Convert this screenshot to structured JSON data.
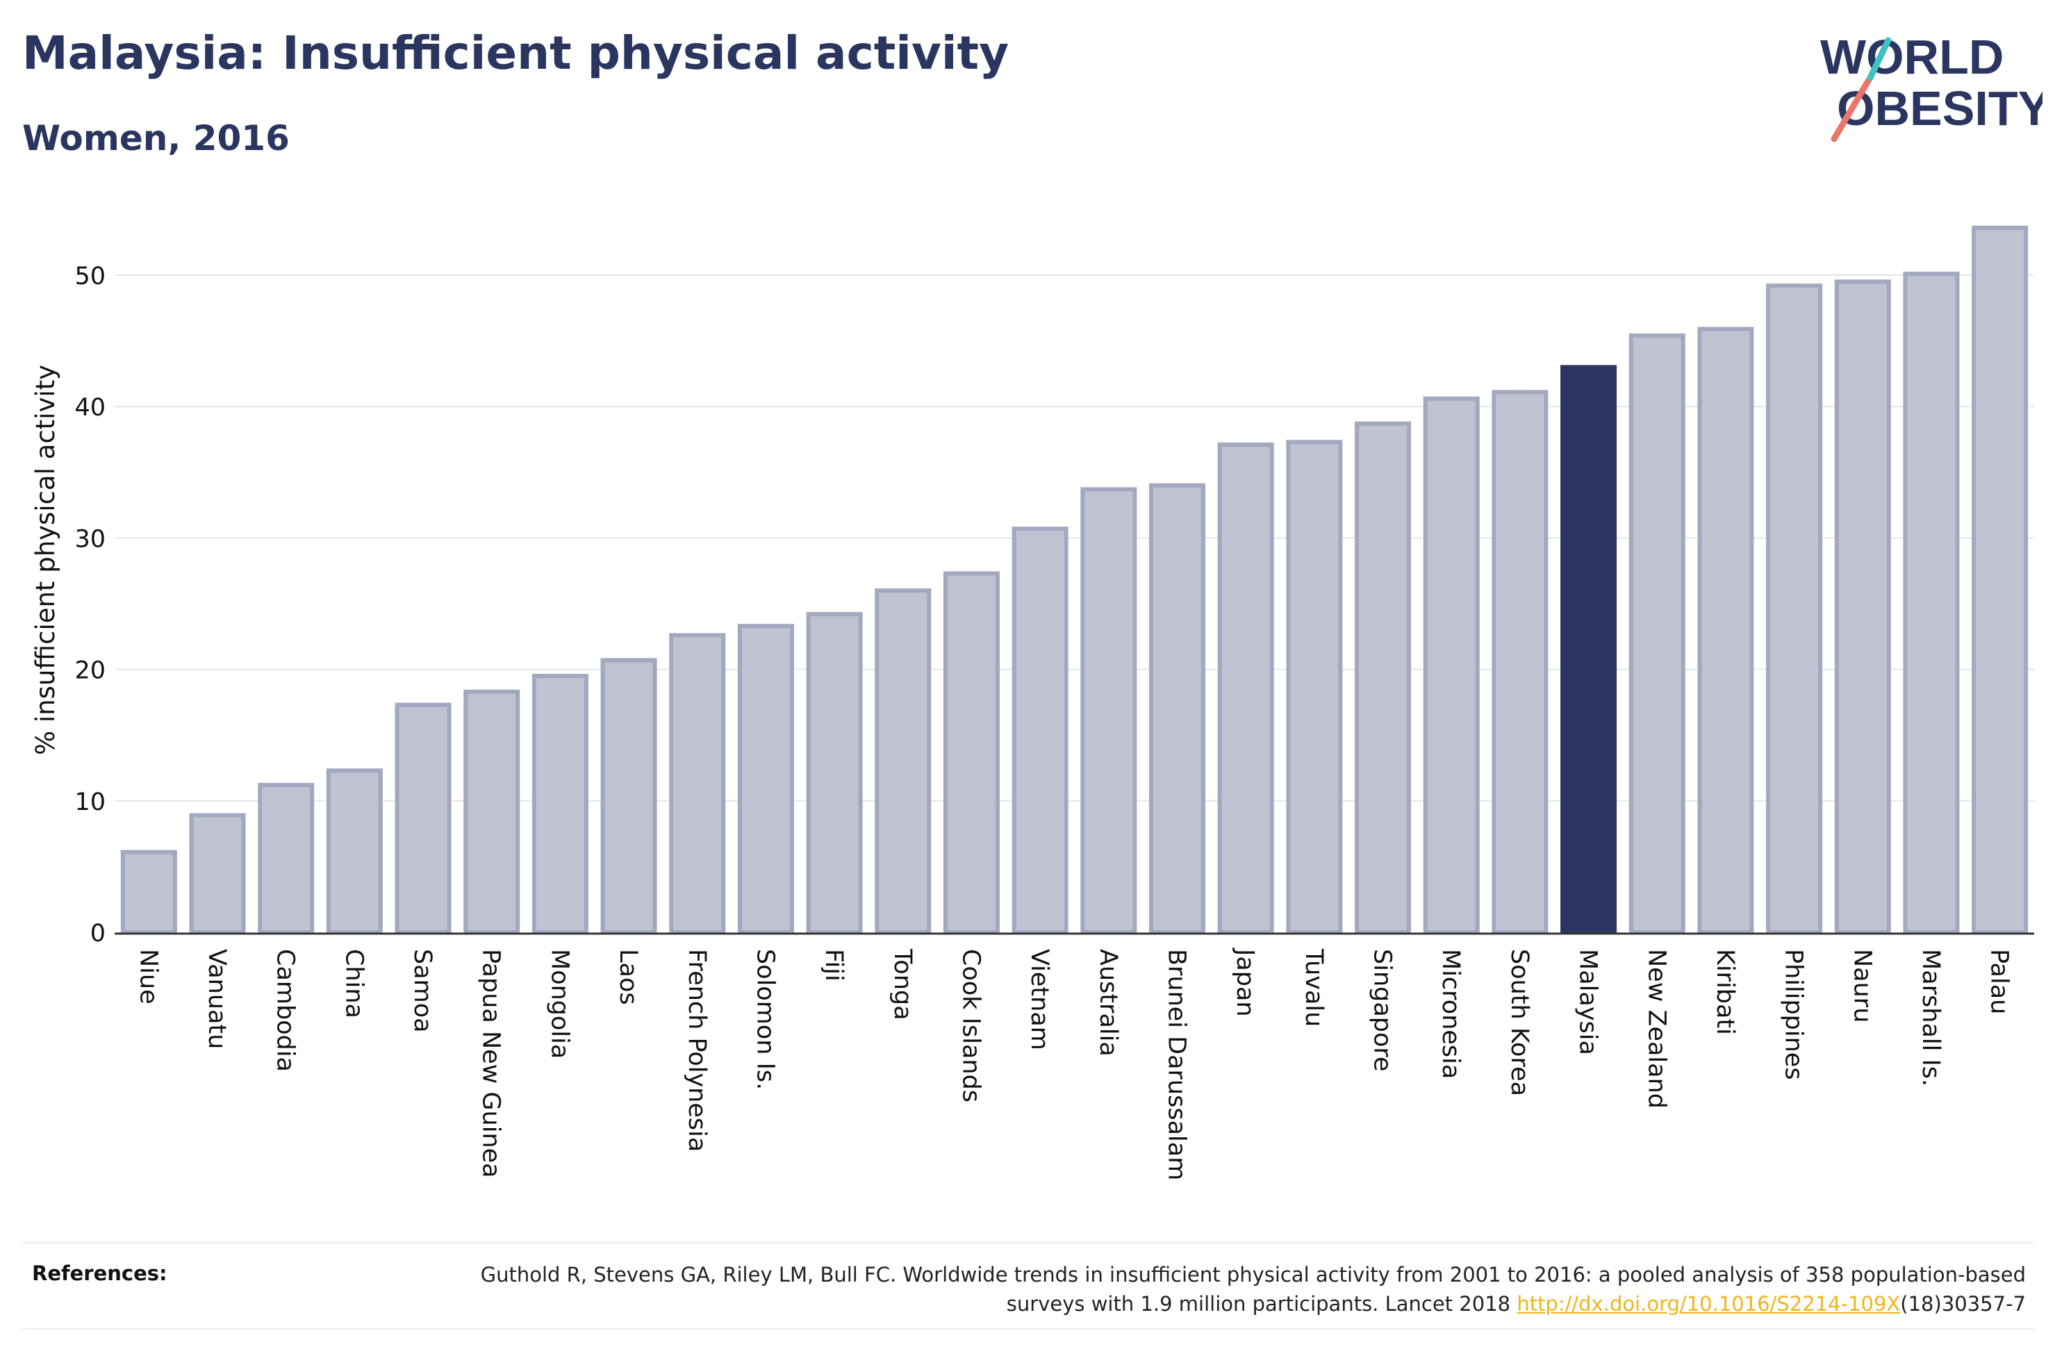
{
  "header": {
    "title": "Malaysia: Insufficient physical activity",
    "subtitle": "Women, 2016"
  },
  "logo": {
    "line1": "WORLD",
    "line2": "OBESITY",
    "text_color": "#2a3560",
    "slash_colors": [
      "#e9766a",
      "#3fc1c1"
    ]
  },
  "chart_data": {
    "type": "bar",
    "ylabel": "% insufficient physical activity",
    "xlabel": "",
    "ylim": [
      0,
      55
    ],
    "yticks": [
      0,
      10,
      20,
      30,
      40,
      50
    ],
    "grid": true,
    "highlight": "Malaysia",
    "colors": {
      "bar": "#bfc2d0",
      "bar_edge": "#a2a8bd",
      "highlight": "#2b3561",
      "grid": "#e4e6ea",
      "axis": "#333333"
    },
    "categories": [
      "Niue",
      "Vanuatu",
      "Cambodia",
      "China",
      "Samoa",
      "Papua New Guinea",
      "Mongolia",
      "Laos",
      "French Polynesia",
      "Solomon Is.",
      "Fiji",
      "Tonga",
      "Cook Islands",
      "Vietnam",
      "Australia",
      "Brunei Darussalam",
      "Japan",
      "Tuvalu",
      "Singapore",
      "Micronesia",
      "South Korea",
      "Malaysia",
      "New Zealand",
      "Kiribati",
      "Philippines",
      "Nauru",
      "Marshall Is.",
      "Palau"
    ],
    "values": [
      6.1,
      8.9,
      11.2,
      12.3,
      17.3,
      18.3,
      19.5,
      20.7,
      22.6,
      23.3,
      24.2,
      26.0,
      27.3,
      30.7,
      33.7,
      34.0,
      37.1,
      37.3,
      38.7,
      40.6,
      41.1,
      43.0,
      45.4,
      45.9,
      49.2,
      49.5,
      50.1,
      53.6
    ]
  },
  "references": {
    "label": "References:",
    "text_before": "Guthold R, Stevens GA, Riley LM, Bull FC. Worldwide trends in insufficient physical activity from 2001 to 2016: a pooled analysis of 358 population-based surveys with 1.9 million participants. Lancet 2018 ",
    "link": "http://dx.doi.org/10.1016/S2214-109X",
    "text_after": "(18)30357-7"
  }
}
